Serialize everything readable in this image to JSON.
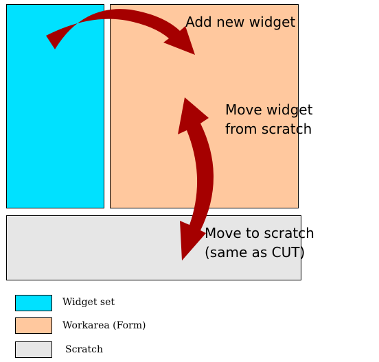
{
  "colors": {
    "widget_set": "#00e1ff",
    "workarea": "#ffc89e",
    "scratch": "#e6e6e6",
    "arrow": "#a50000"
  },
  "labels": {
    "add_new_widget": "Add new widget",
    "move_from_scratch_1": "Move widget",
    "move_from_scratch_2": "from scratch",
    "move_to_scratch_1": "Move to scratch",
    "move_to_scratch_2": "(same as CUT)"
  },
  "legend": {
    "widget_set": "Widget set",
    "workarea": "Workarea (Form)",
    "scratch": "Scratch"
  }
}
